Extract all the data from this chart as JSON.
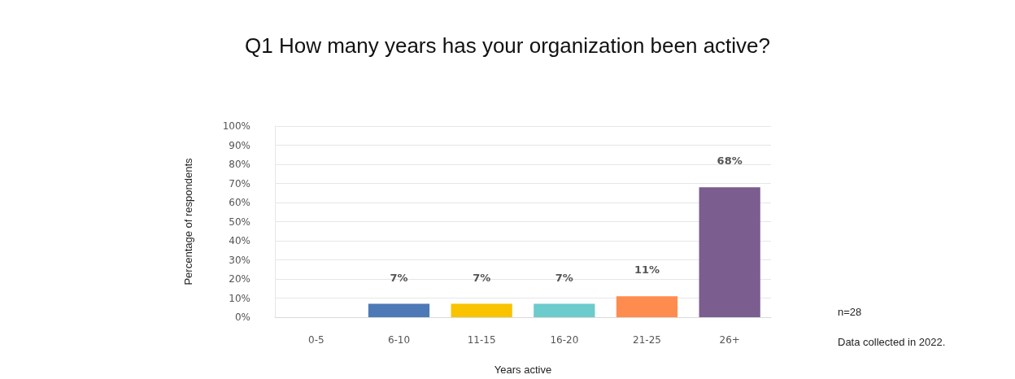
{
  "chart_data": {
    "type": "bar",
    "title": "Q1 How many years has your organization been active?",
    "xlabel": "Years active",
    "ylabel": "Percentage of respondents",
    "categories": [
      "0-5",
      "6-10",
      "11-15",
      "16-20",
      "21-25",
      "26+"
    ],
    "values": [
      0,
      7,
      7,
      7,
      11,
      68
    ],
    "colors": [
      "#4e79b7",
      "#4e79b7",
      "#f9c300",
      "#6ccbcc",
      "#ff8c4f",
      "#7b5d8f"
    ],
    "value_labels": [
      null,
      "7%",
      "7%",
      "7%",
      "11%",
      "68%"
    ],
    "ylim": [
      0,
      100
    ],
    "yticks": [
      {
        "value": 0,
        "label": "0%"
      },
      {
        "value": 10,
        "label": "10%"
      },
      {
        "value": 20,
        "label": "20%"
      },
      {
        "value": 30,
        "label": "30%"
      },
      {
        "value": 40,
        "label": "40%"
      },
      {
        "value": 50,
        "label": "50%"
      },
      {
        "value": 60,
        "label": "60%"
      },
      {
        "value": 70,
        "label": "70%"
      },
      {
        "value": 80,
        "label": "80%"
      },
      {
        "value": 90,
        "label": "90%"
      },
      {
        "value": 100,
        "label": "100%"
      }
    ],
    "grid": "y",
    "annotations": [
      "n=28",
      "Data collected in 2022."
    ]
  }
}
